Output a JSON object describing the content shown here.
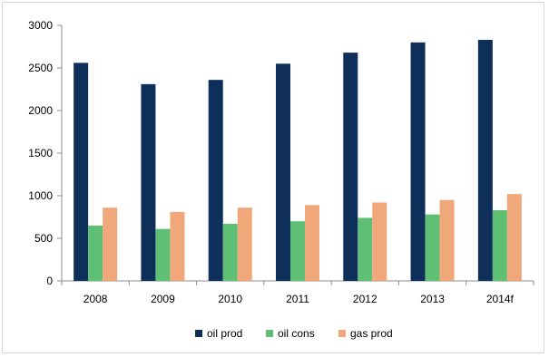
{
  "chart_data": {
    "type": "bar",
    "title": "",
    "xlabel": "",
    "ylabel": "",
    "categories": [
      "2008",
      "2009",
      "2010",
      "2011",
      "2012",
      "2013",
      "2014f"
    ],
    "series": [
      {
        "name": "oil prod",
        "color": "#0d2f5a",
        "values": [
          2560,
          2310,
          2360,
          2550,
          2680,
          2800,
          2830
        ]
      },
      {
        "name": "oil cons",
        "color": "#5fbf75",
        "values": [
          650,
          610,
          670,
          700,
          740,
          780,
          830
        ]
      },
      {
        "name": "gas prod",
        "color": "#f0a77a",
        "values": [
          860,
          810,
          860,
          890,
          920,
          950,
          1020
        ]
      }
    ],
    "ylim": [
      0,
      3000
    ],
    "yticks": [
      0,
      500,
      1000,
      1500,
      2000,
      2500,
      3000
    ],
    "grid": false,
    "legend_position": "bottom"
  }
}
